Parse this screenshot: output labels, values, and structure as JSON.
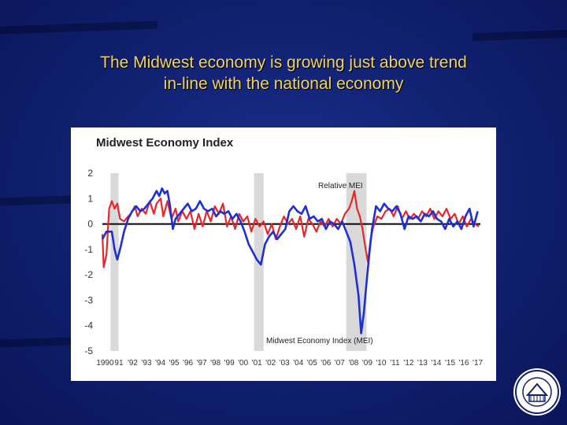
{
  "slide": {
    "title_line1": "The Midwest economy is growing just above trend",
    "title_line2": "in-line with the national economy"
  },
  "colors": {
    "background": "#10206e",
    "title": "#f3d25b",
    "mei_line": "#1f2fd6",
    "relative_mei_line": "#e8262a",
    "recession_band": "#d9d9d9"
  },
  "chart_data": {
    "type": "line",
    "title": "Midwest Economy Index",
    "ylim": [
      -5,
      2
    ],
    "yticks": [
      "2",
      "1",
      "0",
      "-1",
      "-2",
      "-3",
      "-4",
      "-5"
    ],
    "xlim": [
      1990,
      2017.9
    ],
    "xticks": [
      "1990",
      "91",
      "'92",
      "'93",
      "'94",
      "'95",
      "'96",
      "'97",
      "'98",
      "'99",
      "'00",
      "'01",
      "'02",
      "'03",
      "'04",
      "'05",
      "'06",
      "'07",
      "'08",
      "'09",
      "'10",
      "'11",
      "'12",
      "'13",
      "'14",
      "'15",
      "'16",
      "'17"
    ],
    "recessions": [
      [
        1990.6,
        1991.2
      ],
      [
        2001.2,
        2001.9
      ],
      [
        2008.0,
        2009.5
      ]
    ],
    "annotations": {
      "relative": "Relative MEI",
      "mei": "Midwest Economy Index (MEI)"
    },
    "series": [
      {
        "name": "Midwest Economy Index (MEI)",
        "color": "#1f2fd6",
        "points": [
          [
            1990.0,
            -0.6
          ],
          [
            1990.3,
            -0.3
          ],
          [
            1990.7,
            -0.3
          ],
          [
            1990.9,
            -1.0
          ],
          [
            1991.1,
            -1.4
          ],
          [
            1991.3,
            -1.0
          ],
          [
            1991.6,
            -0.3
          ],
          [
            1991.9,
            0.2
          ],
          [
            1992.2,
            0.5
          ],
          [
            1992.5,
            0.7
          ],
          [
            1992.8,
            0.5
          ],
          [
            1993.1,
            0.6
          ],
          [
            1993.4,
            0.8
          ],
          [
            1993.7,
            1.0
          ],
          [
            1994.0,
            1.3
          ],
          [
            1994.2,
            1.1
          ],
          [
            1994.4,
            1.4
          ],
          [
            1994.6,
            1.2
          ],
          [
            1994.8,
            1.3
          ],
          [
            1995.0,
            0.7
          ],
          [
            1995.2,
            -0.2
          ],
          [
            1995.4,
            0.2
          ],
          [
            1995.7,
            0.4
          ],
          [
            1996.0,
            0.6
          ],
          [
            1996.3,
            0.8
          ],
          [
            1996.6,
            0.5
          ],
          [
            1996.9,
            0.6
          ],
          [
            1997.2,
            0.9
          ],
          [
            1997.5,
            0.6
          ],
          [
            1997.8,
            0.5
          ],
          [
            1998.1,
            0.6
          ],
          [
            1998.4,
            0.3
          ],
          [
            1998.7,
            0.5
          ],
          [
            1999.0,
            0.4
          ],
          [
            1999.3,
            0.5
          ],
          [
            1999.6,
            0.2
          ],
          [
            1999.9,
            0.4
          ],
          [
            2000.2,
            0.1
          ],
          [
            2000.5,
            -0.3
          ],
          [
            2000.8,
            -0.8
          ],
          [
            2001.1,
            -1.1
          ],
          [
            2001.4,
            -1.4
          ],
          [
            2001.7,
            -1.6
          ],
          [
            2002.0,
            -0.8
          ],
          [
            2002.3,
            -0.5
          ],
          [
            2002.6,
            -0.3
          ],
          [
            2002.9,
            -0.6
          ],
          [
            2003.2,
            -0.4
          ],
          [
            2003.5,
            -0.2
          ],
          [
            2003.8,
            0.5
          ],
          [
            2004.1,
            0.7
          ],
          [
            2004.4,
            0.5
          ],
          [
            2004.7,
            0.4
          ],
          [
            2005.0,
            0.7
          ],
          [
            2005.3,
            0.2
          ],
          [
            2005.6,
            0.3
          ],
          [
            2005.9,
            0.1
          ],
          [
            2006.2,
            0.2
          ],
          [
            2006.5,
            -0.2
          ],
          [
            2006.8,
            0.1
          ],
          [
            2007.1,
            0.0
          ],
          [
            2007.4,
            -0.2
          ],
          [
            2007.7,
            0.1
          ],
          [
            2008.0,
            -0.3
          ],
          [
            2008.3,
            -0.7
          ],
          [
            2008.6,
            -1.6
          ],
          [
            2008.9,
            -2.8
          ],
          [
            2009.1,
            -4.3
          ],
          [
            2009.3,
            -3.5
          ],
          [
            2009.5,
            -2.3
          ],
          [
            2009.7,
            -1.2
          ],
          [
            2009.9,
            -0.2
          ],
          [
            2010.2,
            0.7
          ],
          [
            2010.5,
            0.5
          ],
          [
            2010.8,
            0.8
          ],
          [
            2011.1,
            0.6
          ],
          [
            2011.4,
            0.5
          ],
          [
            2011.7,
            0.7
          ],
          [
            2012.0,
            0.4
          ],
          [
            2012.3,
            -0.2
          ],
          [
            2012.6,
            0.3
          ],
          [
            2012.9,
            0.2
          ],
          [
            2013.2,
            0.3
          ],
          [
            2013.5,
            0.1
          ],
          [
            2013.8,
            0.4
          ],
          [
            2014.1,
            0.3
          ],
          [
            2014.4,
            0.5
          ],
          [
            2014.7,
            0.2
          ],
          [
            2015.0,
            0.1
          ],
          [
            2015.3,
            -0.2
          ],
          [
            2015.6,
            0.2
          ],
          [
            2015.9,
            -0.1
          ],
          [
            2016.2,
            0.1
          ],
          [
            2016.5,
            -0.2
          ],
          [
            2016.8,
            0.3
          ],
          [
            2017.1,
            0.6
          ],
          [
            2017.4,
            -0.1
          ],
          [
            2017.7,
            0.5
          ]
        ]
      },
      {
        "name": "Relative MEI",
        "color": "#e8262a",
        "points": [
          [
            1990.0,
            -0.4
          ],
          [
            1990.1,
            -1.7
          ],
          [
            1990.3,
            -1.2
          ],
          [
            1990.5,
            0.6
          ],
          [
            1990.7,
            0.9
          ],
          [
            1990.9,
            0.6
          ],
          [
            1991.1,
            0.8
          ],
          [
            1991.3,
            0.2
          ],
          [
            1991.6,
            0.1
          ],
          [
            1991.9,
            0.3
          ],
          [
            1992.1,
            0.4
          ],
          [
            1992.4,
            0.7
          ],
          [
            1992.6,
            0.3
          ],
          [
            1992.9,
            0.6
          ],
          [
            1993.2,
            0.4
          ],
          [
            1993.5,
            0.9
          ],
          [
            1993.8,
            0.4
          ],
          [
            1994.0,
            0.8
          ],
          [
            1994.3,
            1.0
          ],
          [
            1994.5,
            0.3
          ],
          [
            1994.8,
            0.9
          ],
          [
            1995.1,
            0.2
          ],
          [
            1995.4,
            0.6
          ],
          [
            1995.6,
            0.1
          ],
          [
            1995.9,
            0.5
          ],
          [
            1996.2,
            0.2
          ],
          [
            1996.5,
            0.5
          ],
          [
            1996.8,
            -0.2
          ],
          [
            1997.1,
            0.4
          ],
          [
            1997.4,
            -0.1
          ],
          [
            1997.7,
            0.5
          ],
          [
            1998.0,
            0.1
          ],
          [
            1998.3,
            0.7
          ],
          [
            1998.6,
            0.4
          ],
          [
            1998.9,
            0.8
          ],
          [
            1999.2,
            -0.1
          ],
          [
            1999.5,
            0.3
          ],
          [
            1999.8,
            -0.2
          ],
          [
            2000.1,
            0.4
          ],
          [
            2000.4,
            0.1
          ],
          [
            2000.7,
            0.3
          ],
          [
            2001.0,
            -0.3
          ],
          [
            2001.3,
            0.2
          ],
          [
            2001.6,
            -0.1
          ],
          [
            2001.9,
            0.1
          ],
          [
            2002.2,
            -0.4
          ],
          [
            2002.5,
            0.0
          ],
          [
            2002.8,
            -0.6
          ],
          [
            2003.1,
            -0.1
          ],
          [
            2003.4,
            0.3
          ],
          [
            2003.7,
            0.0
          ],
          [
            2004.0,
            0.2
          ],
          [
            2004.3,
            -0.2
          ],
          [
            2004.6,
            0.3
          ],
          [
            2004.9,
            -0.5
          ],
          [
            2005.2,
            0.2
          ],
          [
            2005.5,
            0.0
          ],
          [
            2005.8,
            -0.3
          ],
          [
            2006.1,
            0.1
          ],
          [
            2006.4,
            -0.1
          ],
          [
            2006.7,
            0.2
          ],
          [
            2007.0,
            -0.1
          ],
          [
            2007.3,
            0.2
          ],
          [
            2007.6,
            0.0
          ],
          [
            2007.9,
            0.4
          ],
          [
            2008.2,
            0.6
          ],
          [
            2008.4,
            0.9
          ],
          [
            2008.6,
            1.3
          ],
          [
            2008.8,
            0.6
          ],
          [
            2009.0,
            0.3
          ],
          [
            2009.2,
            -0.2
          ],
          [
            2009.4,
            -0.9
          ],
          [
            2009.6,
            -1.5
          ],
          [
            2009.8,
            -0.6
          ],
          [
            2010.0,
            -0.1
          ],
          [
            2010.3,
            0.3
          ],
          [
            2010.6,
            0.2
          ],
          [
            2010.9,
            0.5
          ],
          [
            2011.2,
            0.6
          ],
          [
            2011.5,
            0.3
          ],
          [
            2011.8,
            0.7
          ],
          [
            2012.1,
            0.2
          ],
          [
            2012.4,
            0.5
          ],
          [
            2012.7,
            0.2
          ],
          [
            2013.0,
            0.4
          ],
          [
            2013.3,
            0.2
          ],
          [
            2013.6,
            0.5
          ],
          [
            2013.9,
            0.3
          ],
          [
            2014.2,
            0.6
          ],
          [
            2014.5,
            0.2
          ],
          [
            2014.8,
            0.5
          ],
          [
            2015.1,
            0.3
          ],
          [
            2015.4,
            0.6
          ],
          [
            2015.7,
            0.2
          ],
          [
            2016.0,
            0.4
          ],
          [
            2016.3,
            0.0
          ],
          [
            2016.6,
            0.3
          ],
          [
            2016.9,
            -0.1
          ],
          [
            2017.2,
            0.2
          ],
          [
            2017.5,
            0.0
          ],
          [
            2017.8,
            -0.1
          ]
        ]
      }
    ]
  }
}
